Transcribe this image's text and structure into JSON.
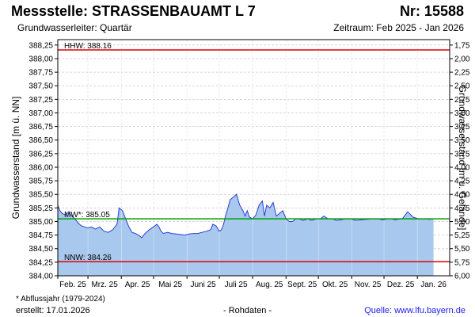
{
  "header": {
    "title": "Messstelle: STRASSENBAUAMT L 7",
    "nr": "Nr: 15588",
    "aquifer": "Grundwasserleiter: Quartär",
    "period": "Zeitraum: Feb 2025 - Jan 2026"
  },
  "footer": {
    "footnote": "* Abflussjahr (1979-2024)",
    "created": "erstellt:  17.01.2026",
    "rawdata": "- Rohdaten -",
    "source": "Quelle:  www.lfu.bayern.de"
  },
  "colors": {
    "fill": "#a8c8ee",
    "line": "#2b3fd6",
    "hhw": "#e00000",
    "nnw": "#e00000",
    "mw": "#00a000",
    "grid": "#cccccc"
  },
  "chart_data": {
    "type": "area",
    "ylabel_left": "Grundwasserstand [m ü. NN]",
    "ylabel_right": "Grundwasserstand [m u. Gelände]",
    "ylim": [
      384.0,
      388.35
    ],
    "yticks_left": [
      "388,25",
      "388,00",
      "387,75",
      "387,50",
      "387,25",
      "387,00",
      "386,75",
      "386,50",
      "386,25",
      "386,00",
      "385,75",
      "385,50",
      "385,25",
      "385,00",
      "384,75",
      "384,50",
      "384,25",
      "384,00"
    ],
    "yticks_left_values": [
      388.25,
      388.0,
      387.75,
      387.5,
      387.25,
      387.0,
      386.75,
      386.5,
      386.25,
      386.0,
      385.75,
      385.5,
      385.25,
      385.0,
      384.75,
      384.5,
      384.25,
      384.0
    ],
    "yticks_right": [
      "1,75",
      "2,00",
      "2,25",
      "2,50",
      "2,75",
      "3,00",
      "3,25",
      "3,50",
      "3,75",
      "4,00",
      "4,25",
      "4,50",
      "4,75",
      "5,00",
      "5,25",
      "5,50",
      "5,75",
      "6,00"
    ],
    "xticks": [
      "Feb. 25",
      "Mrz. 25",
      "Apr. 25",
      "Mai 25",
      "Juni 25",
      "Juli 25",
      "Aug. 25",
      "Sept. 25",
      "Okt. 25",
      "Nov. 25",
      "Dez. 25",
      "Jan. 26"
    ],
    "xlim": [
      "2025-02-01",
      "2026-01-31"
    ],
    "grid": true,
    "reference_lines": [
      {
        "label": "HHW: 388.16",
        "value": 388.16,
        "color": "#e00000"
      },
      {
        "label": "MW*: 385.05",
        "value": 385.05,
        "color": "#00a000"
      },
      {
        "label": "NNW: 384.26",
        "value": 384.26,
        "color": "#e00000"
      }
    ],
    "series": [
      {
        "x": [
          "2025-02-01",
          "2025-02-03",
          "2025-02-05",
          "2025-02-08",
          "2025-02-11",
          "2025-02-14",
          "2025-02-17",
          "2025-02-20",
          "2025-02-23",
          "2025-02-26",
          "2025-03-01",
          "2025-03-04",
          "2025-03-08",
          "2025-03-12",
          "2025-03-16",
          "2025-03-20",
          "2025-03-24",
          "2025-03-28",
          "2025-03-30",
          "2025-04-02",
          "2025-04-05",
          "2025-04-08",
          "2025-04-11",
          "2025-04-14",
          "2025-04-17",
          "2025-04-20",
          "2025-04-23",
          "2025-04-27",
          "2025-05-01",
          "2025-05-04",
          "2025-05-06",
          "2025-05-08",
          "2025-05-10",
          "2025-05-14",
          "2025-05-18",
          "2025-05-22",
          "2025-05-26",
          "2025-05-30",
          "2025-06-03",
          "2025-06-07",
          "2025-06-11",
          "2025-06-15",
          "2025-06-19",
          "2025-06-23",
          "2025-06-25",
          "2025-06-28",
          "2025-07-01",
          "2025-07-03",
          "2025-07-05",
          "2025-07-07",
          "2025-07-09",
          "2025-07-11",
          "2025-07-14",
          "2025-07-17",
          "2025-07-20",
          "2025-07-23",
          "2025-07-25",
          "2025-07-27",
          "2025-07-29",
          "2025-08-01",
          "2025-08-04",
          "2025-08-07",
          "2025-08-10",
          "2025-08-12",
          "2025-08-14",
          "2025-08-17",
          "2025-08-20",
          "2025-08-23",
          "2025-08-26",
          "2025-08-29",
          "2025-09-01",
          "2025-09-04",
          "2025-09-07",
          "2025-09-10",
          "2025-09-13",
          "2025-09-17",
          "2025-09-21",
          "2025-09-25",
          "2025-09-29",
          "2025-10-03",
          "2025-10-06",
          "2025-10-10",
          "2025-10-14",
          "2025-10-18",
          "2025-10-22",
          "2025-10-26",
          "2025-10-31",
          "2025-11-05",
          "2025-11-10",
          "2025-11-15",
          "2025-11-20",
          "2025-11-25",
          "2025-11-30",
          "2025-12-05",
          "2025-12-08",
          "2025-12-11",
          "2025-12-14",
          "2025-12-18",
          "2025-12-23",
          "2025-12-28",
          "2026-01-02",
          "2026-01-07",
          "2026-01-12",
          "2026-01-16"
        ],
        "values": [
          385.3,
          385.2,
          385.15,
          385.12,
          385.18,
          385.1,
          385.05,
          384.97,
          384.92,
          384.9,
          384.88,
          384.9,
          384.86,
          384.9,
          384.82,
          384.8,
          384.85,
          384.95,
          385.25,
          385.2,
          385.05,
          384.9,
          384.8,
          384.78,
          384.75,
          384.7,
          384.78,
          384.85,
          384.9,
          384.95,
          384.9,
          384.82,
          384.78,
          384.8,
          384.78,
          384.77,
          384.76,
          384.75,
          384.77,
          384.78,
          384.78,
          384.8,
          384.82,
          384.85,
          384.95,
          384.92,
          384.82,
          384.85,
          384.95,
          385.12,
          385.25,
          385.4,
          385.45,
          385.5,
          385.3,
          385.2,
          385.1,
          385.2,
          385.08,
          385.05,
          385.12,
          385.3,
          385.38,
          385.1,
          385.3,
          385.25,
          385.35,
          385.1,
          385.15,
          385.2,
          385.05,
          385.0,
          385.0,
          385.05,
          385.05,
          385.02,
          385.05,
          385.02,
          385.05,
          385.05,
          385.1,
          385.05,
          385.05,
          385.02,
          385.03,
          385.05,
          385.05,
          385.02,
          385.03,
          385.04,
          385.05,
          385.05,
          385.03,
          385.05,
          385.05,
          385.03,
          385.04,
          385.05,
          385.18,
          385.08,
          385.05,
          385.05,
          385.04,
          385.05
        ]
      }
    ]
  }
}
